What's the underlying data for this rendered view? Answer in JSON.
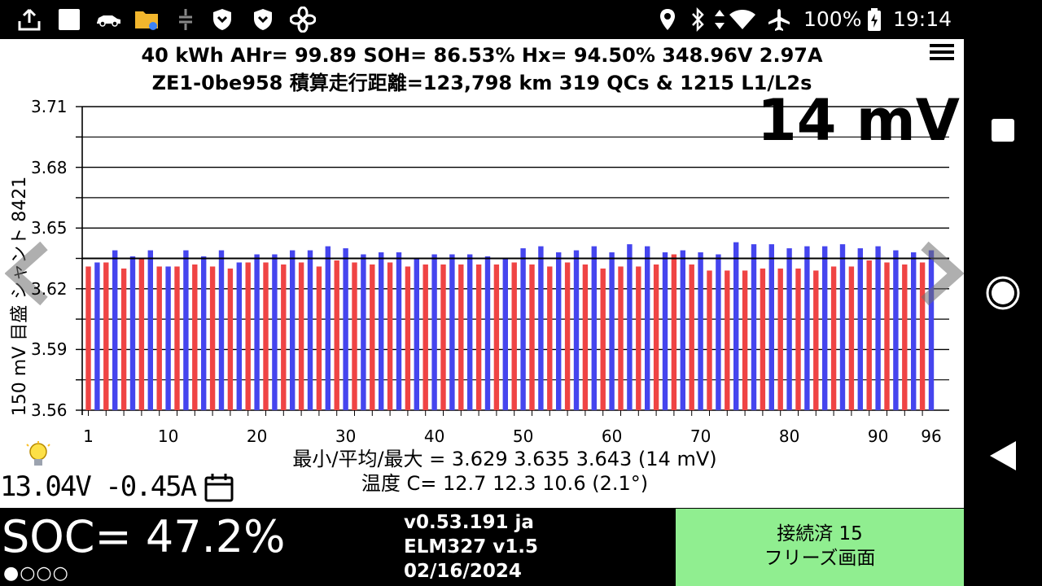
{
  "status_bar": {
    "icons": [
      "share-icon",
      "square-notification-icon",
      "car-icon",
      "folder-icon",
      "plug-icon",
      "shield-icon",
      "shield-icon-2",
      "fan-icon",
      "location-icon",
      "bluetooth-icon",
      "data-arrows-icon",
      "wifi-icon",
      "airplane-icon",
      "battery-charging-icon"
    ],
    "battery": "100%",
    "time": "19:14"
  },
  "header": {
    "line1": "40 kWh  AHr= 99.89  SOH= 86.53%   Hx= 94.50%   348.96V 2.97A",
    "line2": "ZE1-0be958 積算走行距離=123,798 km  319 QCs & 1215 L1/L2s"
  },
  "delta_display": "14 mV",
  "chart_data": {
    "type": "bar",
    "ylabel": "150 mV 目盛 シャント 8421",
    "ylim": [
      3.56,
      3.71
    ],
    "yticks": [
      "3.71",
      "3.68",
      "3.65",
      "3.62",
      "3.59",
      "3.56"
    ],
    "xticks": [
      "1",
      "10",
      "20",
      "30",
      "40",
      "50",
      "60",
      "70",
      "80",
      "90",
      "96"
    ],
    "grid": true,
    "colors": {
      "odd": "#ef4444",
      "even": "#4545ee"
    },
    "mean": 3.635,
    "x": [
      1,
      2,
      3,
      4,
      5,
      6,
      7,
      8,
      9,
      10,
      11,
      12,
      13,
      14,
      15,
      16,
      17,
      18,
      19,
      20,
      21,
      22,
      23,
      24,
      25,
      26,
      27,
      28,
      29,
      30,
      31,
      32,
      33,
      34,
      35,
      36,
      37,
      38,
      39,
      40,
      41,
      42,
      43,
      44,
      45,
      46,
      47,
      48,
      49,
      50,
      51,
      52,
      53,
      54,
      55,
      56,
      57,
      58,
      59,
      60,
      61,
      62,
      63,
      64,
      65,
      66,
      67,
      68,
      69,
      70,
      71,
      72,
      73,
      74,
      75,
      76,
      77,
      78,
      79,
      80,
      81,
      82,
      83,
      84,
      85,
      86,
      87,
      88,
      89,
      90,
      91,
      92,
      93,
      94,
      95,
      96
    ],
    "values": [
      3.631,
      3.633,
      3.633,
      3.639,
      3.63,
      3.636,
      3.635,
      3.639,
      3.631,
      3.631,
      3.631,
      3.639,
      3.632,
      3.636,
      3.631,
      3.639,
      3.63,
      3.633,
      3.633,
      3.637,
      3.633,
      3.637,
      3.632,
      3.639,
      3.633,
      3.639,
      3.631,
      3.641,
      3.634,
      3.64,
      3.633,
      3.637,
      3.632,
      3.638,
      3.633,
      3.638,
      3.631,
      3.635,
      3.632,
      3.637,
      3.632,
      3.637,
      3.632,
      3.637,
      3.632,
      3.636,
      3.632,
      3.635,
      3.633,
      3.64,
      3.632,
      3.641,
      3.631,
      3.638,
      3.633,
      3.639,
      3.632,
      3.641,
      3.63,
      3.638,
      3.631,
      3.642,
      3.631,
      3.641,
      3.632,
      3.638,
      3.637,
      3.639,
      3.632,
      3.638,
      3.629,
      3.637,
      3.629,
      3.643,
      3.629,
      3.642,
      3.63,
      3.642,
      3.63,
      3.64,
      3.63,
      3.641,
      3.629,
      3.641,
      3.631,
      3.642,
      3.631,
      3.64,
      3.634,
      3.641,
      3.633,
      3.639,
      3.632,
      3.638,
      3.633,
      3.639
    ]
  },
  "stats": {
    "line1": "最小/平均/最大 = 3.629 3.635 3.643  (14 mV)",
    "line2": "温度 C= 12.7  12.3  10.6  (2.1°)"
  },
  "aux": {
    "voltage": "13.04V -0.45A"
  },
  "bottom": {
    "soc": "SOC= 47.2%",
    "soc_dots": "●○○○",
    "version": "v0.53.191 ja",
    "elm": "ELM327 v1.5",
    "date": "02/16/2024",
    "conn_line1": "接続済 15",
    "conn_line2": "フリーズ画面"
  },
  "nav": {
    "icons": [
      "recents-square-icon",
      "home-circle-icon",
      "back-triangle-icon"
    ]
  }
}
